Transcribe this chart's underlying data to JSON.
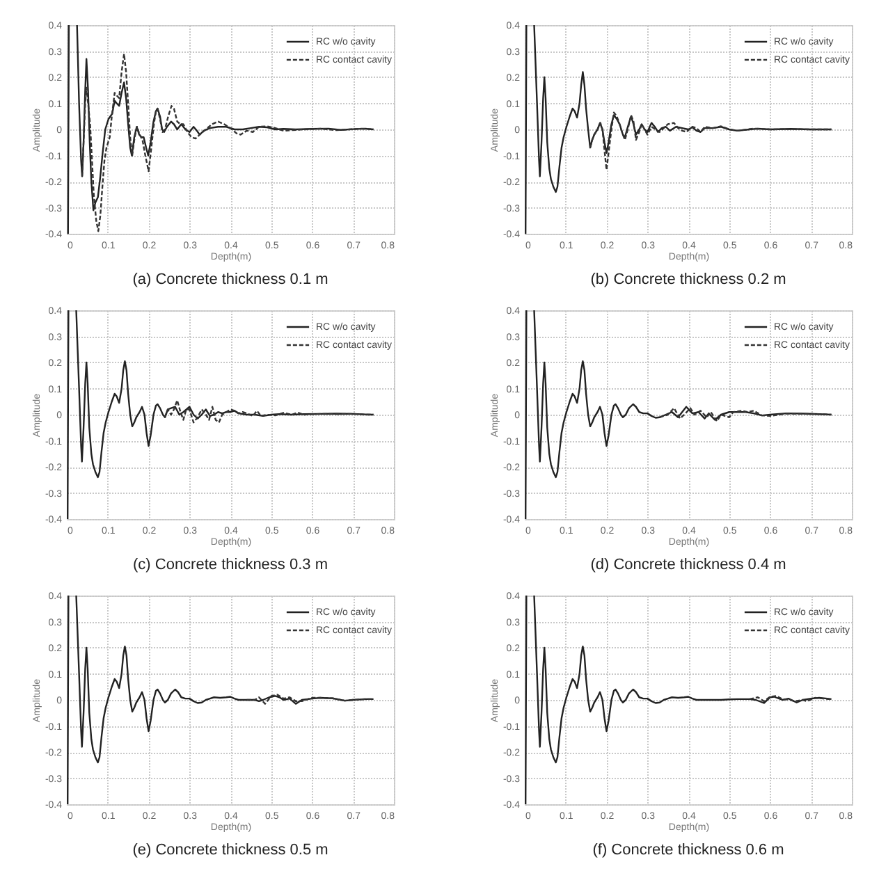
{
  "chart_data": [
    {
      "type": "line",
      "title": "(a)  Concrete thickness 0.1 m",
      "xlabel": "Depth(m)",
      "ylabel": "Amplitude",
      "xlim": [
        0,
        0.8
      ],
      "ylim": [
        -0.4,
        0.4
      ],
      "xticks": [
        0,
        0.1,
        0.2,
        0.3,
        0.4,
        0.5,
        0.6,
        0.7,
        0.8
      ],
      "yticks": [
        -0.4,
        -0.3,
        -0.2,
        -0.1,
        0,
        0.1,
        0.2,
        0.3,
        0.4
      ],
      "grid": true,
      "legend": "top right",
      "series": [
        {
          "name": "RC w/o cavity",
          "color": "#222222",
          "line_style": "solid",
          "x": [
            0.003,
            0.005,
            0.015,
            0.025,
            0.03,
            0.035,
            0.0375,
            0.041,
            0.045,
            0.048,
            0.052,
            0.056,
            0.06,
            0.065,
            0.07,
            0.076,
            0.082,
            0.087,
            0.094,
            0.102,
            0.111,
            0.117,
            0.122,
            0.128,
            0.134,
            0.14,
            0.145,
            0.15,
            0.155,
            0.159,
            0.165,
            0.171,
            0.177,
            0.183,
            0.188,
            0.194,
            0.199,
            0.205,
            0.212,
            0.218,
            0.222,
            0.228,
            0.233,
            0.238,
            0.245,
            0.255,
            0.262,
            0.27,
            0.28,
            0.29,
            0.3,
            0.31,
            0.318,
            0.325,
            0.335,
            0.35,
            0.37,
            0.39,
            0.41,
            0.43,
            0.45,
            0.47,
            0.49,
            0.51,
            0.53,
            0.56,
            0.6,
            0.64,
            0.67,
            0.7,
            0.73,
            0.75
          ],
          "values": [
            -0.4,
            0.4,
            null,
            0.4,
            0.1,
            -0.12,
            -0.18,
            -0.05,
            0.15,
            0.27,
            0.15,
            -0.05,
            -0.2,
            -0.31,
            -0.28,
            -0.26,
            -0.18,
            -0.1,
            0.0,
            0.04,
            0.06,
            0.11,
            0.1,
            0.09,
            0.14,
            0.18,
            0.12,
            0.02,
            -0.07,
            -0.1,
            -0.03,
            0.01,
            -0.02,
            -0.03,
            -0.03,
            -0.07,
            -0.1,
            -0.05,
            0.03,
            0.07,
            0.08,
            0.05,
            0.0,
            -0.01,
            0.01,
            0.03,
            0.02,
            0.0,
            0.02,
            0.0,
            -0.01,
            0.01,
            -0.005,
            -0.02,
            -0.005,
            0.005,
            0.01,
            0.01,
            0.0,
            0.0,
            0.005,
            0.01,
            0.008,
            0.0,
            0.002,
            0.0,
            0.002,
            0.003,
            -0.002,
            0.001,
            0.003,
            0.0
          ]
        },
        {
          "name": "RC contact cavity",
          "color": "#333333",
          "line_style": "dashed",
          "x": [
            0.0375,
            0.041,
            0.045,
            0.048,
            0.052,
            0.057,
            0.061,
            0.066,
            0.072,
            0.077,
            0.082,
            0.087,
            0.092,
            0.097,
            0.105,
            0.11,
            0.117,
            0.122,
            0.128,
            0.134,
            0.14,
            0.145,
            0.15,
            0.155,
            0.16,
            0.166,
            0.172,
            0.178,
            0.185,
            0.192,
            0.2,
            0.206,
            0.213,
            0.218,
            0.222,
            0.228,
            0.234,
            0.24,
            0.248,
            0.256,
            0.262,
            0.27,
            0.278,
            0.285,
            0.295,
            0.305,
            0.315,
            0.325,
            0.34,
            0.355,
            0.37,
            0.385,
            0.4,
            0.415,
            0.425,
            0.44,
            0.455,
            0.47,
            0.49,
            0.51,
            0.53,
            0.55,
            0.58,
            0.62,
            0.66,
            0.69,
            0.72,
            0.75
          ],
          "values": [
            -0.18,
            -0.05,
            0.1,
            0.16,
            0.1,
            0.02,
            -0.1,
            -0.25,
            -0.35,
            -0.39,
            -0.33,
            -0.22,
            -0.12,
            -0.07,
            -0.03,
            0.05,
            0.14,
            0.13,
            0.12,
            0.22,
            0.29,
            0.22,
            0.1,
            -0.03,
            -0.1,
            -0.03,
            0.01,
            -0.02,
            -0.04,
            -0.1,
            -0.16,
            -0.08,
            0.02,
            0.07,
            0.08,
            0.04,
            -0.01,
            0.0,
            0.05,
            0.09,
            0.08,
            0.03,
            0.02,
            0.02,
            -0.01,
            -0.03,
            -0.035,
            -0.02,
            0.0,
            0.02,
            0.03,
            0.02,
            0.005,
            -0.015,
            -0.02,
            -0.005,
            -0.01,
            0.01,
            0.012,
            0.005,
            -0.005,
            -0.003,
            0.0,
            0.003,
            -0.003,
            0.0,
            0.003,
            0.0
          ]
        }
      ]
    },
    {
      "type": "line",
      "title": "(b)  Concrete thickness 0.2 m",
      "xlabel": "Depth(m)",
      "ylabel": "Amplitude",
      "xlim": [
        0,
        0.8
      ],
      "ylim": [
        -0.4,
        0.4
      ],
      "xticks": [
        0,
        0.1,
        0.2,
        0.3,
        0.4,
        0.5,
        0.6,
        0.7,
        0.8
      ],
      "yticks": [
        -0.4,
        -0.3,
        -0.2,
        -0.1,
        0,
        0.1,
        0.2,
        0.3,
        0.4
      ],
      "grid": true,
      "legend": "top right",
      "series": [
        {
          "name": "RC w/o cavity",
          "color": "#222222",
          "line_style": "solid",
          "x": [
            0.002,
            0.004,
            0.014,
            0.023,
            0.03,
            0.035,
            0.037,
            0.041,
            0.045,
            0.048,
            0.051,
            0.055,
            0.06,
            0.064,
            0.07,
            0.076,
            0.08,
            0.085,
            0.09,
            0.095,
            0.102,
            0.11,
            0.117,
            0.122,
            0.128,
            0.134,
            0.138,
            0.142,
            0.146,
            0.15,
            0.155,
            0.16,
            0.165,
            0.17,
            0.178,
            0.184,
            0.19,
            0.195,
            0.2,
            0.205,
            0.212,
            0.218,
            0.225,
            0.232,
            0.24,
            0.245,
            0.252,
            0.26,
            0.266,
            0.272,
            0.28,
            0.286,
            0.293,
            0.3,
            0.31,
            0.318,
            0.326,
            0.335,
            0.345,
            0.355,
            0.37,
            0.385,
            0.4,
            0.41,
            0.42,
            0.43,
            0.44,
            0.46,
            0.48,
            0.5,
            0.52,
            0.55,
            0.57,
            0.6,
            0.65,
            0.7,
            0.75
          ],
          "values": [
            -0.4,
            0.4,
            null,
            0.4,
            0.1,
            -0.12,
            -0.18,
            -0.05,
            0.12,
            0.2,
            0.12,
            -0.05,
            -0.15,
            -0.19,
            -0.22,
            -0.24,
            -0.22,
            -0.14,
            -0.07,
            -0.03,
            0.01,
            0.05,
            0.08,
            0.07,
            0.045,
            0.1,
            0.17,
            0.22,
            0.17,
            0.08,
            0.0,
            -0.07,
            -0.04,
            -0.02,
            0.0,
            0.025,
            0.0,
            -0.05,
            -0.09,
            -0.05,
            0.02,
            0.055,
            0.04,
            0.02,
            -0.02,
            -0.03,
            0.01,
            0.05,
            0.02,
            -0.02,
            0.0,
            0.02,
            0.0,
            -0.01,
            0.025,
            0.01,
            -0.01,
            0.005,
            0.01,
            -0.005,
            0.01,
            0.005,
            0.0,
            0.008,
            -0.005,
            -0.01,
            0.005,
            0.005,
            0.01,
            0.0,
            -0.005,
            0.0,
            0.003,
            0.0,
            0.002,
            0.0,
            0.0
          ]
        },
        {
          "name": "RC contact cavity",
          "color": "#333333",
          "line_style": "dashed",
          "x": [
            0.16,
            0.165,
            0.17,
            0.178,
            0.185,
            0.19,
            0.195,
            0.2,
            0.205,
            0.212,
            0.218,
            0.225,
            0.232,
            0.24,
            0.245,
            0.252,
            0.26,
            0.266,
            0.272,
            0.28,
            0.286,
            0.293,
            0.3,
            0.31,
            0.32,
            0.33,
            0.34,
            0.35,
            0.365,
            0.375,
            0.385,
            0.395,
            0.41,
            0.42,
            0.43,
            0.44,
            0.46,
            0.48,
            0.5,
            0.52,
            0.56,
            0.6,
            0.65,
            0.7,
            0.75
          ],
          "values": [
            -0.07,
            -0.04,
            -0.02,
            0.0,
            0.025,
            0.0,
            -0.08,
            -0.155,
            -0.09,
            0.0,
            0.065,
            0.05,
            0.02,
            -0.02,
            -0.04,
            0.0,
            0.055,
            0.03,
            -0.04,
            -0.01,
            0.02,
            0.0,
            -0.02,
            0.01,
            0.0,
            -0.01,
            0.005,
            0.02,
            0.025,
            0.005,
            -0.005,
            -0.01,
            0.01,
            0.005,
            -0.01,
            0.01,
            0.005,
            0.012,
            0.0,
            -0.005,
            0.003,
            0.0,
            0.001,
            0.0,
            0.0
          ]
        }
      ]
    },
    {
      "type": "line",
      "title": "(c) Concrete thickness 0.3 m",
      "xlabel": "Depth(m)",
      "ylabel": "Amplitude",
      "xlim": [
        0,
        0.8
      ],
      "ylim": [
        -0.4,
        0.4
      ],
      "xticks": [
        0,
        0.1,
        0.2,
        0.3,
        0.4,
        0.5,
        0.6,
        0.7,
        0.8
      ],
      "yticks": [
        -0.4,
        -0.3,
        -0.2,
        -0.1,
        0,
        0.1,
        0.2,
        0.3,
        0.4
      ],
      "grid": true,
      "legend": "top right",
      "series": [
        {
          "name": "RC w/o cavity",
          "color": "#222222",
          "line_style": "solid",
          "x": [
            0.002,
            0.004,
            0.014,
            0.023,
            0.03,
            0.035,
            0.037,
            0.041,
            0.045,
            0.048,
            0.051,
            0.055,
            0.06,
            0.064,
            0.07,
            0.076,
            0.08,
            0.085,
            0.09,
            0.095,
            0.102,
            0.11,
            0.117,
            0.122,
            0.128,
            0.134,
            0.138,
            0.142,
            0.146,
            0.15,
            0.155,
            0.16,
            0.165,
            0.17,
            0.178,
            0.184,
            0.19,
            0.195,
            0.2,
            0.205,
            0.212,
            0.218,
            0.222,
            0.228,
            0.235,
            0.24,
            0.247,
            0.255,
            0.265,
            0.275,
            0.285,
            0.3,
            0.31,
            0.32,
            0.33,
            0.34,
            0.35,
            0.36,
            0.37,
            0.38,
            0.39,
            0.4,
            0.41,
            0.42,
            0.44,
            0.46,
            0.48,
            0.5,
            0.52,
            0.55,
            0.58,
            0.62,
            0.66,
            0.7,
            0.73,
            0.75
          ],
          "values": [
            -0.4,
            0.4,
            null,
            0.4,
            0.1,
            -0.12,
            -0.18,
            -0.05,
            0.12,
            0.2,
            0.12,
            -0.05,
            -0.15,
            -0.19,
            -0.22,
            -0.24,
            -0.22,
            -0.14,
            -0.07,
            -0.03,
            0.01,
            0.05,
            0.08,
            0.07,
            0.045,
            0.1,
            0.17,
            0.205,
            0.17,
            0.08,
            0.0,
            -0.045,
            -0.03,
            -0.01,
            0.01,
            0.03,
            0.0,
            -0.07,
            -0.12,
            -0.08,
            0.0,
            0.035,
            0.04,
            0.025,
            0.0,
            -0.01,
            0.02,
            0.025,
            0.03,
            0.0,
            0.01,
            0.03,
            0.0,
            -0.015,
            0.0,
            0.02,
            -0.005,
            0.0,
            0.01,
            0.005,
            0.01,
            0.01,
            0.015,
            0.005,
            0.0,
            0.0,
            -0.005,
            0.0,
            0.002,
            0.0,
            0.002,
            0.003,
            0.004,
            0.003,
            0.001,
            0.0
          ]
        },
        {
          "name": "RC contact cavity",
          "color": "#333333",
          "line_style": "dashed",
          "x": [
            0.24,
            0.247,
            0.255,
            0.262,
            0.27,
            0.278,
            0.285,
            0.292,
            0.3,
            0.31,
            0.32,
            0.33,
            0.34,
            0.348,
            0.356,
            0.364,
            0.372,
            0.38,
            0.39,
            0.4,
            0.41,
            0.42,
            0.43,
            0.44,
            0.455,
            0.465,
            0.475,
            0.49,
            0.51,
            0.53,
            0.55,
            0.565,
            0.58,
            0.6,
            0.63,
            0.66,
            0.7,
            0.73,
            0.75
          ],
          "values": [
            -0.01,
            0.02,
            0.0,
            0.02,
            0.055,
            0.01,
            -0.02,
            0.02,
            0.02,
            -0.03,
            -0.01,
            0.02,
            0.0,
            -0.02,
            0.03,
            -0.02,
            -0.03,
            0.0,
            0.01,
            0.02,
            0.015,
            0.005,
            0.01,
            0.005,
            -0.005,
            0.015,
            -0.005,
            0.0,
            -0.003,
            0.007,
            0.0,
            0.008,
            0.0,
            0.002,
            0.003,
            0.002,
            0.003,
            0.0,
            0.0
          ]
        }
      ]
    },
    {
      "type": "line",
      "title": "(d)  Concrete thickness 0.4 m",
      "xlabel": "Depth(m)",
      "ylabel": "Amplitude",
      "xlim": [
        0,
        0.8
      ],
      "ylim": [
        -0.4,
        0.4
      ],
      "xticks": [
        0,
        0.1,
        0.2,
        0.3,
        0.4,
        0.5,
        0.6,
        0.7,
        0.8
      ],
      "yticks": [
        -0.4,
        -0.3,
        -0.2,
        -0.1,
        0,
        0.1,
        0.2,
        0.3,
        0.4
      ],
      "grid": true,
      "legend": "top right",
      "series": [
        {
          "name": "RC w/o cavity",
          "color": "#222222",
          "line_style": "solid",
          "x": [
            0.002,
            0.004,
            0.014,
            0.023,
            0.03,
            0.035,
            0.037,
            0.041,
            0.045,
            0.048,
            0.051,
            0.055,
            0.06,
            0.064,
            0.07,
            0.076,
            0.08,
            0.085,
            0.09,
            0.095,
            0.102,
            0.11,
            0.117,
            0.122,
            0.128,
            0.134,
            0.138,
            0.142,
            0.146,
            0.15,
            0.155,
            0.16,
            0.165,
            0.17,
            0.178,
            0.184,
            0.19,
            0.195,
            0.2,
            0.205,
            0.212,
            0.218,
            0.222,
            0.228,
            0.235,
            0.24,
            0.247,
            0.255,
            0.265,
            0.272,
            0.28,
            0.29,
            0.3,
            0.31,
            0.32,
            0.33,
            0.345,
            0.36,
            0.375,
            0.385,
            0.395,
            0.41,
            0.425,
            0.44,
            0.45,
            0.465,
            0.48,
            0.5,
            0.52,
            0.54,
            0.56,
            0.58,
            0.6,
            0.64,
            0.68,
            0.72,
            0.75
          ],
          "values": [
            -0.4,
            0.4,
            null,
            0.4,
            0.1,
            -0.12,
            -0.18,
            -0.05,
            0.12,
            0.2,
            0.12,
            -0.05,
            -0.15,
            -0.19,
            -0.22,
            -0.24,
            -0.22,
            -0.14,
            -0.07,
            -0.03,
            0.01,
            0.05,
            0.08,
            0.07,
            0.045,
            0.1,
            0.17,
            0.205,
            0.17,
            0.08,
            0.0,
            -0.045,
            -0.03,
            -0.01,
            0.01,
            0.03,
            0.0,
            -0.07,
            -0.12,
            -0.08,
            0.0,
            0.035,
            0.04,
            0.025,
            0.0,
            -0.01,
            0.0,
            0.025,
            0.04,
            0.03,
            0.01,
            0.005,
            0.005,
            -0.005,
            -0.012,
            -0.01,
            0.0,
            0.01,
            -0.01,
            0.01,
            0.03,
            0.005,
            0.01,
            -0.015,
            0.005,
            -0.02,
            0.0,
            0.01,
            0.01,
            0.01,
            0.005,
            -0.003,
            0.0,
            0.005,
            0.004,
            0.002,
            0.0
          ]
        },
        {
          "name": "RC contact cavity",
          "color": "#333333",
          "line_style": "dashed",
          "x": [
            0.33,
            0.35,
            0.365,
            0.38,
            0.39,
            0.405,
            0.415,
            0.43,
            0.445,
            0.455,
            0.47,
            0.48,
            0.5,
            0.51,
            0.53,
            0.545,
            0.56,
            0.58,
            0.6,
            0.64,
            0.68,
            0.72,
            0.75
          ],
          "values": [
            -0.01,
            0.0,
            0.025,
            -0.015,
            0.0,
            0.025,
            0.0,
            0.015,
            -0.01,
            0.01,
            -0.025,
            0.0,
            -0.01,
            0.01,
            0.015,
            0.01,
            0.015,
            -0.003,
            -0.005,
            0.004,
            0.003,
            0.002,
            0.0
          ]
        }
      ]
    },
    {
      "type": "line",
      "title": "(e)  Concrete thickness 0.5 m",
      "xlabel": "Depth(m)",
      "ylabel": "Amplitude",
      "xlim": [
        0,
        0.8
      ],
      "ylim": [
        -0.4,
        0.4
      ],
      "xticks": [
        0,
        0.1,
        0.2,
        0.3,
        0.4,
        0.5,
        0.6,
        0.7,
        0.8
      ],
      "yticks": [
        -0.4,
        -0.3,
        -0.2,
        -0.1,
        0,
        0.1,
        0.2,
        0.3,
        0.4
      ],
      "grid": true,
      "legend": "top right",
      "series": [
        {
          "name": "RC w/o cavity",
          "color": "#222222",
          "line_style": "solid",
          "x": [
            0.002,
            0.004,
            0.014,
            0.023,
            0.03,
            0.035,
            0.037,
            0.041,
            0.045,
            0.048,
            0.051,
            0.055,
            0.06,
            0.064,
            0.07,
            0.076,
            0.08,
            0.085,
            0.09,
            0.095,
            0.102,
            0.11,
            0.117,
            0.122,
            0.128,
            0.134,
            0.138,
            0.142,
            0.146,
            0.15,
            0.155,
            0.16,
            0.165,
            0.17,
            0.178,
            0.184,
            0.19,
            0.195,
            0.2,
            0.205,
            0.212,
            0.218,
            0.222,
            0.228,
            0.235,
            0.24,
            0.247,
            0.255,
            0.265,
            0.272,
            0.28,
            0.29,
            0.3,
            0.31,
            0.32,
            0.33,
            0.34,
            0.35,
            0.36,
            0.375,
            0.39,
            0.4,
            0.41,
            0.42,
            0.44,
            0.46,
            0.47,
            0.48,
            0.495,
            0.51,
            0.52,
            0.53,
            0.545,
            0.56,
            0.575,
            0.6,
            0.62,
            0.65,
            0.68,
            0.7,
            0.73,
            0.75
          ],
          "values": [
            -0.4,
            0.4,
            null,
            0.4,
            0.1,
            -0.12,
            -0.18,
            -0.05,
            0.12,
            0.2,
            0.12,
            -0.05,
            -0.15,
            -0.19,
            -0.22,
            -0.24,
            -0.22,
            -0.14,
            -0.07,
            -0.03,
            0.01,
            0.05,
            0.08,
            0.07,
            0.045,
            0.1,
            0.17,
            0.205,
            0.17,
            0.08,
            0.0,
            -0.045,
            -0.03,
            -0.01,
            0.01,
            0.03,
            0.0,
            -0.07,
            -0.12,
            -0.08,
            0.0,
            0.035,
            0.04,
            0.025,
            0.0,
            -0.01,
            0.0,
            0.025,
            0.04,
            0.03,
            0.01,
            0.005,
            0.005,
            -0.005,
            -0.012,
            -0.01,
            0.0,
            0.005,
            0.01,
            0.008,
            0.01,
            0.012,
            0.005,
            0.0,
            0.0,
            0.0,
            -0.005,
            0.0,
            0.01,
            0.015,
            0.01,
            0.0,
            0.005,
            -0.015,
            0.0,
            0.005,
            0.008,
            0.006,
            -0.003,
            0.0,
            0.003,
            0.003
          ]
        },
        {
          "name": "RC contact cavity",
          "color": "#333333",
          "line_style": "dashed",
          "x": [
            0.44,
            0.46,
            0.47,
            0.485,
            0.5,
            0.515,
            0.53,
            0.545,
            0.56,
            0.575,
            0.6,
            0.62,
            0.65,
            0.68,
            0.7,
            0.73,
            0.75
          ],
          "values": [
            0.0,
            0.0,
            0.01,
            -0.015,
            0.015,
            0.02,
            0.005,
            0.01,
            -0.005,
            -0.005,
            0.008,
            0.008,
            0.006,
            -0.003,
            0.0,
            0.003,
            0.003
          ]
        }
      ]
    },
    {
      "type": "line",
      "title": "(f)  Concrete thickness 0.6 m",
      "xlabel": "Depth(m)",
      "ylabel": "Amplitude",
      "xlim": [
        0,
        0.8
      ],
      "ylim": [
        -0.4,
        0.4
      ],
      "xticks": [
        0,
        0.1,
        0.2,
        0.3,
        0.4,
        0.5,
        0.6,
        0.7,
        0.8
      ],
      "yticks": [
        -0.4,
        -0.3,
        -0.2,
        -0.1,
        0,
        0.1,
        0.2,
        0.3,
        0.4
      ],
      "grid": true,
      "legend": "top right",
      "series": [
        {
          "name": "RC w/o cavity",
          "color": "#222222",
          "line_style": "solid",
          "x": [
            0.002,
            0.004,
            0.014,
            0.023,
            0.03,
            0.035,
            0.037,
            0.041,
            0.045,
            0.048,
            0.051,
            0.055,
            0.06,
            0.064,
            0.07,
            0.076,
            0.08,
            0.085,
            0.09,
            0.095,
            0.102,
            0.11,
            0.117,
            0.122,
            0.128,
            0.134,
            0.138,
            0.142,
            0.146,
            0.15,
            0.155,
            0.16,
            0.165,
            0.17,
            0.178,
            0.184,
            0.19,
            0.195,
            0.2,
            0.205,
            0.212,
            0.218,
            0.222,
            0.228,
            0.235,
            0.24,
            0.247,
            0.255,
            0.265,
            0.272,
            0.28,
            0.29,
            0.3,
            0.31,
            0.32,
            0.33,
            0.34,
            0.35,
            0.36,
            0.375,
            0.39,
            0.4,
            0.41,
            0.42,
            0.44,
            0.46,
            0.48,
            0.5,
            0.52,
            0.55,
            0.565,
            0.585,
            0.6,
            0.61,
            0.63,
            0.645,
            0.665,
            0.68,
            0.7,
            0.72,
            0.74,
            0.75
          ],
          "values": [
            -0.4,
            0.4,
            null,
            0.4,
            0.1,
            -0.12,
            -0.18,
            -0.05,
            0.12,
            0.2,
            0.12,
            -0.05,
            -0.15,
            -0.19,
            -0.22,
            -0.24,
            -0.22,
            -0.14,
            -0.07,
            -0.03,
            0.01,
            0.05,
            0.08,
            0.07,
            0.045,
            0.1,
            0.17,
            0.205,
            0.17,
            0.08,
            0.0,
            -0.045,
            -0.03,
            -0.01,
            0.01,
            0.03,
            0.0,
            -0.07,
            -0.12,
            -0.08,
            0.0,
            0.035,
            0.04,
            0.025,
            0.0,
            -0.01,
            0.0,
            0.025,
            0.04,
            0.03,
            0.01,
            0.005,
            0.005,
            -0.005,
            -0.012,
            -0.01,
            0.0,
            0.005,
            0.01,
            0.008,
            0.01,
            0.012,
            0.005,
            0.0,
            0.0,
            0.0,
            0.0,
            0.002,
            0.003,
            0.003,
            0.0,
            -0.012,
            0.01,
            0.012,
            0.0,
            0.005,
            -0.01,
            0.0,
            0.005,
            0.008,
            0.005,
            0.003
          ]
        },
        {
          "name": "RC contact cavity",
          "color": "#333333",
          "line_style": "dashed",
          "x": [
            0.55,
            0.57,
            0.585,
            0.6,
            0.615,
            0.63,
            0.65,
            0.66,
            0.68,
            0.69,
            0.71,
            0.73,
            0.75
          ],
          "values": [
            0.003,
            0.01,
            -0.005,
            0.012,
            0.015,
            0.003,
            0.0,
            -0.005,
            0.0,
            -0.005,
            0.008,
            0.005,
            0.002
          ]
        }
      ]
    }
  ]
}
